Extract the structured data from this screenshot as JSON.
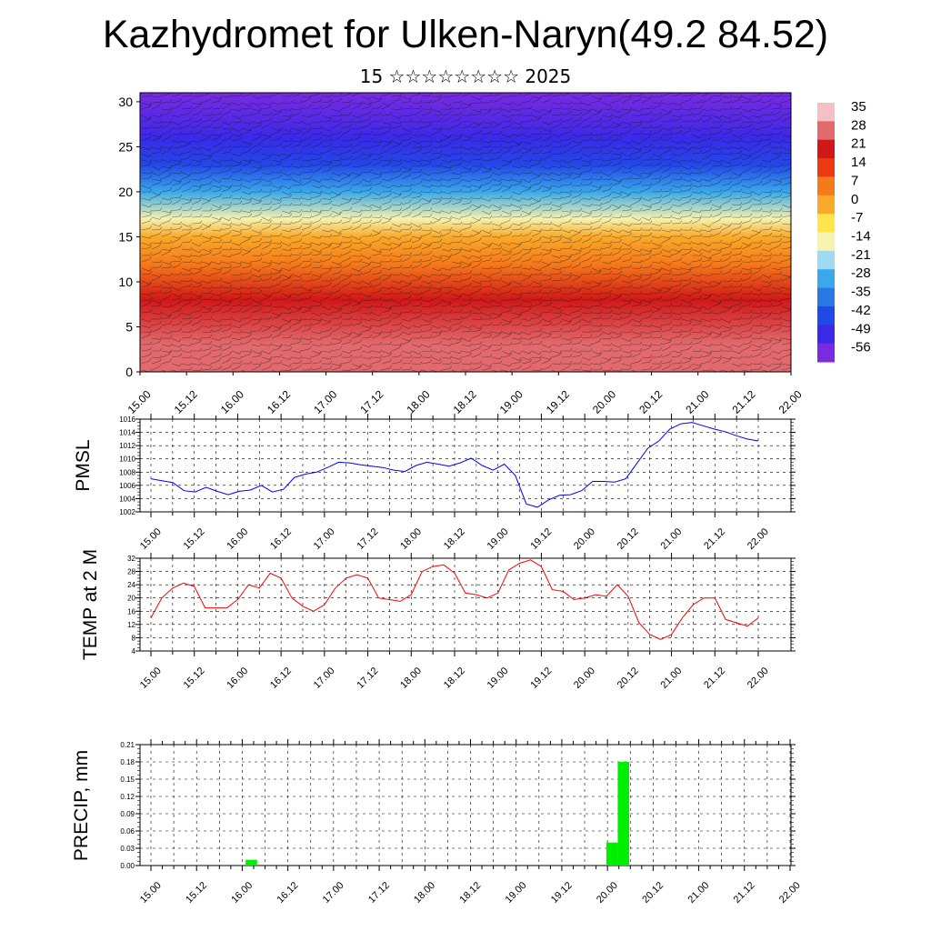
{
  "header": {
    "title": "Kazhydromet for Ulken-Naryn(49.2 84.52)",
    "subtitle": "15 ☆☆☆☆☆☆☆☆ 2025"
  },
  "chart_data": [
    {
      "type": "heatmap",
      "name": "cross-section",
      "x_tick_labels": [
        "15.00",
        "15.12",
        "16.00",
        "16.12",
        "17.00",
        "17.12",
        "18.00",
        "18.12",
        "19.00",
        "19.12",
        "20.00",
        "20.12",
        "21.00",
        "21.12",
        "22.00"
      ],
      "y_ticks": [
        0,
        5,
        10,
        15,
        20,
        25,
        30
      ],
      "ylim": [
        0,
        31
      ],
      "colorbar_labels": [
        "35",
        "28",
        "21",
        "14",
        "7",
        "0",
        "-7",
        "-14",
        "-21",
        "-28",
        "-35",
        "-42",
        "-49",
        "-56"
      ],
      "colorbar_colors": [
        "#f5c0c4",
        "#e26a6e",
        "#d01818",
        "#ee3a10",
        "#f57a1a",
        "#f9aa2a",
        "#fde54a",
        "#f6f2b0",
        "#9fdaf2",
        "#3aa8ea",
        "#2a78e6",
        "#2348e8",
        "#3a2ae8",
        "#7a2ae0"
      ],
      "temperature_by_level": [
        {
          "level": 0,
          "value": 25
        },
        {
          "level": 3,
          "value": 24
        },
        {
          "level": 8,
          "value": 16
        },
        {
          "level": 12,
          "value": 5
        },
        {
          "level": 15,
          "value": -4
        },
        {
          "level": 17,
          "value": -15
        },
        {
          "level": 20,
          "value": -30
        },
        {
          "level": 23,
          "value": -45
        },
        {
          "level": 26,
          "value": -53
        },
        {
          "level": 31,
          "value": -58
        }
      ]
    },
    {
      "type": "line",
      "name": "pmsl",
      "ylabel": "PMSL",
      "ylim": [
        1002,
        1016
      ],
      "y_ticks": [
        1002,
        1004,
        1006,
        1008,
        1010,
        1012,
        1014,
        1016
      ],
      "x_tick_labels": [
        "15.00",
        "15.12",
        "16.00",
        "16.12",
        "17.00",
        "17.12",
        "18.00",
        "18.12",
        "19.00",
        "19.12",
        "20.00",
        "20.12",
        "21.00",
        "21.12",
        "22.00"
      ],
      "color": "#0000ff",
      "values": [
        1007.0,
        1006.7,
        1006.4,
        1005.2,
        1005.0,
        1005.7,
        1005.1,
        1004.6,
        1005.1,
        1005.3,
        1006.0,
        1005.0,
        1005.4,
        1007.2,
        1007.7,
        1008.0,
        1008.7,
        1009.5,
        1009.4,
        1009.1,
        1008.9,
        1008.7,
        1008.3,
        1008.1,
        1009.0,
        1009.5,
        1009.2,
        1008.9,
        1009.4,
        1010.1,
        1009.0,
        1008.3,
        1009.2,
        1007.5,
        1003.2,
        1002.7,
        1003.8,
        1004.5,
        1004.6,
        1005.2,
        1006.6,
        1006.6,
        1006.5,
        1007.0,
        1009.3,
        1011.6,
        1012.7,
        1014.5,
        1015.3,
        1015.5,
        1015.0,
        1014.5,
        1014.1,
        1013.5,
        1013.0,
        1012.7
      ]
    },
    {
      "type": "line",
      "name": "temp2m",
      "ylabel": "TEMP at 2 M",
      "ylim": [
        4,
        32
      ],
      "y_ticks": [
        4,
        8,
        12,
        16,
        20,
        24,
        28,
        32
      ],
      "x_tick_labels": [
        "15.00",
        "15.12",
        "16.00",
        "16.12",
        "17.00",
        "17.12",
        "18.00",
        "18.12",
        "19.00",
        "19.12",
        "20.00",
        "20.12",
        "21.00",
        "21.12",
        "22.00"
      ],
      "color": "#ff0000",
      "values": [
        14.0,
        20.0,
        23.0,
        24.5,
        23.5,
        17.0,
        17.0,
        17.0,
        19.5,
        24.0,
        23.0,
        27.5,
        26.0,
        20.0,
        17.5,
        16.0,
        18.0,
        23.0,
        26.0,
        27.0,
        26.0,
        20.0,
        19.5,
        19.0,
        21.0,
        28.0,
        29.5,
        30.0,
        27.5,
        21.5,
        21.0,
        20.0,
        21.5,
        28.5,
        30.5,
        31.5,
        29.5,
        22.5,
        22.0,
        19.5,
        20.0,
        21.0,
        20.5,
        24.0,
        20.5,
        12.5,
        9.0,
        7.5,
        9.0,
        14.0,
        18.0,
        20.0,
        20.0,
        13.5,
        12.5,
        11.5,
        14.0
      ]
    },
    {
      "type": "bar",
      "name": "precip",
      "ylabel": "PRECIP, mm",
      "ylim": [
        0,
        0.21
      ],
      "y_tick_labels": [
        "0.00",
        "0.03",
        "0.06",
        "0.09",
        "0.12",
        "0.15",
        "0.18",
        "0.21"
      ],
      "x_tick_labels": [
        "15.00",
        "15.12",
        "16.00",
        "16.12",
        "17.00",
        "17.12",
        "18.00",
        "18.12",
        "19.00",
        "19.12",
        "20.00",
        "20.12",
        "21.00",
        "21.12",
        "22.00"
      ],
      "color": "#00ee00",
      "bars": [
        {
          "x": 16.1,
          "value": 0.01
        },
        {
          "x": 20.05,
          "value": 0.04
        },
        {
          "x": 20.175,
          "value": 0.18
        }
      ]
    }
  ]
}
